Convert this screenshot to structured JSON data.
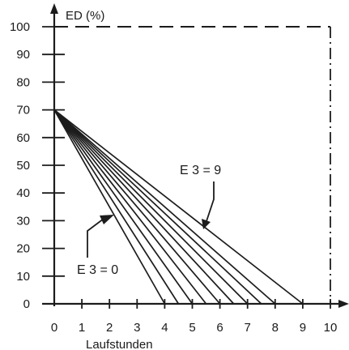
{
  "chart_data": {
    "type": "line",
    "title": "",
    "ylabel": "ED (%)",
    "xlabel": "Laufstunden",
    "xlim": [
      0,
      10
    ],
    "ylim": [
      0,
      100
    ],
    "x_ticks": [
      "0",
      "1",
      "2",
      "3",
      "4",
      "5",
      "6",
      "7",
      "8",
      "9",
      "10"
    ],
    "y_ticks": [
      "0",
      "10",
      "20",
      "30",
      "40",
      "50",
      "60",
      "70",
      "80",
      "90",
      "100"
    ],
    "grid": false,
    "series": [
      {
        "points": [
          [
            0,
            70
          ],
          [
            4,
            0
          ]
        ]
      },
      {
        "points": [
          [
            0,
            70
          ],
          [
            4.5,
            0
          ]
        ]
      },
      {
        "points": [
          [
            0,
            70
          ],
          [
            5,
            0
          ]
        ]
      },
      {
        "points": [
          [
            0,
            70
          ],
          [
            5.5,
            0
          ]
        ]
      },
      {
        "points": [
          [
            0,
            70
          ],
          [
            6,
            0
          ]
        ]
      },
      {
        "points": [
          [
            0,
            70
          ],
          [
            6.5,
            0
          ]
        ]
      },
      {
        "points": [
          [
            0,
            70
          ],
          [
            7,
            0
          ]
        ]
      },
      {
        "points": [
          [
            0,
            70
          ],
          [
            7.5,
            0
          ]
        ]
      },
      {
        "points": [
          [
            0,
            70
          ],
          [
            8,
            0
          ]
        ]
      },
      {
        "points": [
          [
            0,
            70
          ],
          [
            9,
            0
          ]
        ]
      }
    ],
    "limit_box": {
      "x_max": 10,
      "y_max": 100,
      "style": "dashed"
    },
    "annotations": [
      {
        "text": "E 3 = 9",
        "x": 8.2,
        "y": 50,
        "points_to": [
          8.2,
          27
        ]
      },
      {
        "text": "E 3 = 0",
        "x": 1.3,
        "y": 10,
        "points_to": [
          2.2,
          31
        ]
      }
    ]
  }
}
